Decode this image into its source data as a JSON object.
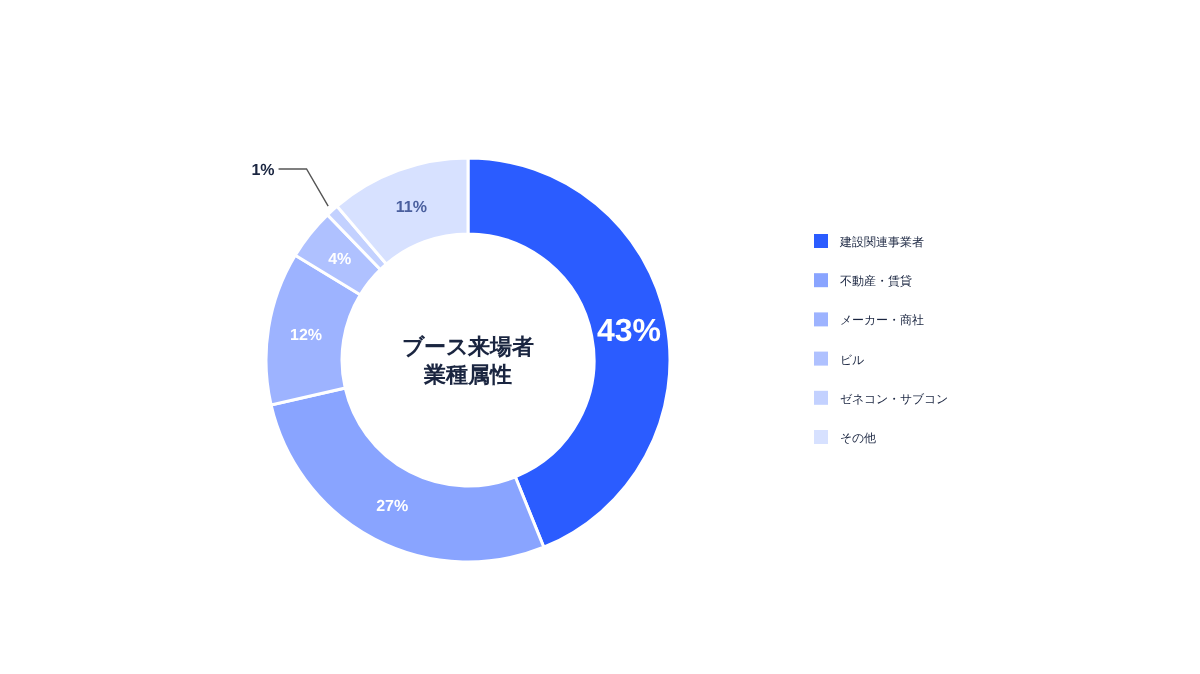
{
  "chart_data": {
    "type": "donut",
    "title": "ブース来場者業種属性",
    "categories": [
      "建設関連事業者",
      "不動産・賃貸",
      "メーカー・商社",
      "ビル",
      "ゼネコン・サブコン",
      "その他"
    ],
    "values": [
      43,
      27,
      12,
      4,
      1,
      11
    ],
    "colors": [
      "#2b5cff",
      "#89a4ff",
      "#9db3ff",
      "#afc1ff",
      "#c3d1ff",
      "#d7e1ff"
    ],
    "value_labels": [
      "43%",
      "27%",
      "12%",
      "4%",
      "1%",
      "11%"
    ],
    "legend": "right"
  }
}
